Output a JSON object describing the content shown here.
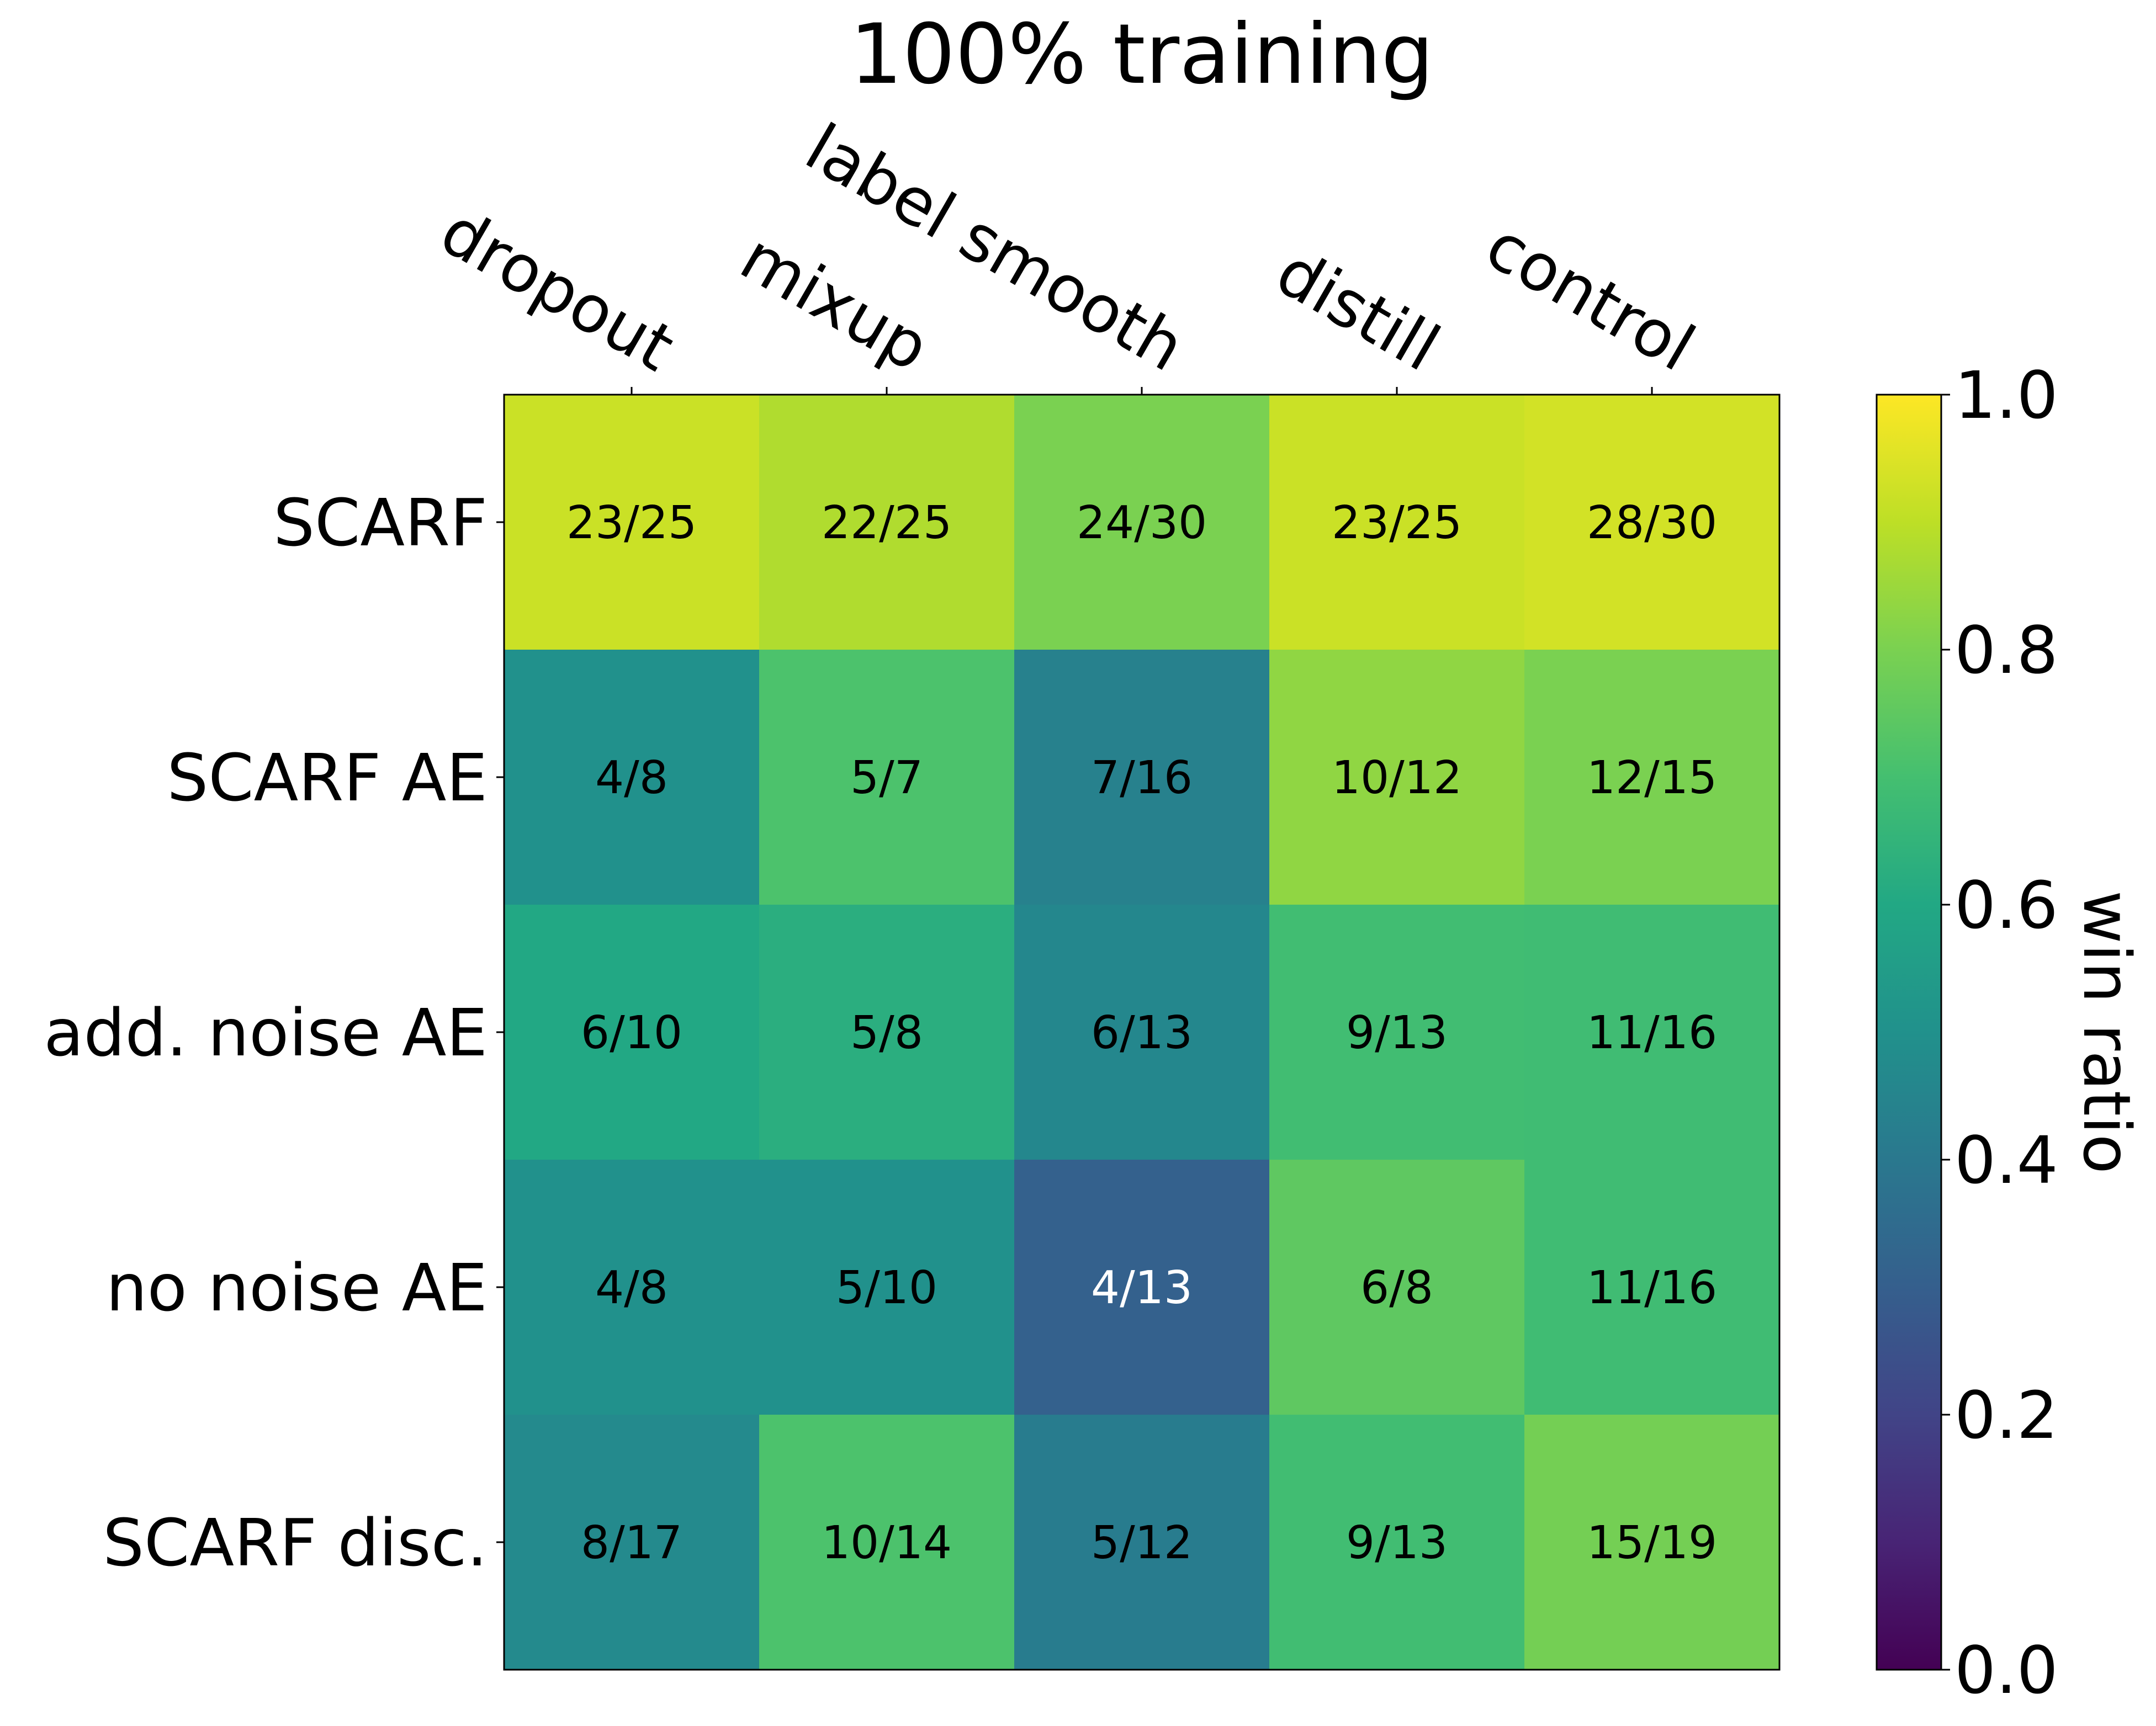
{
  "chart_data": {
    "type": "heatmap",
    "title": "100% training",
    "columns": [
      "dropout",
      "mixup",
      "label smooth",
      "distill",
      "control"
    ],
    "rows": [
      "SCARF",
      "SCARF AE",
      "add. noise AE",
      "no noise AE",
      "SCARF disc."
    ],
    "cells": [
      [
        {
          "label": "23/25",
          "value": 0.92
        },
        {
          "label": "22/25",
          "value": 0.88
        },
        {
          "label": "24/30",
          "value": 0.8
        },
        {
          "label": "23/25",
          "value": 0.92
        },
        {
          "label": "28/30",
          "value": 0.9333
        }
      ],
      [
        {
          "label": "4/8",
          "value": 0.5
        },
        {
          "label": "5/7",
          "value": 0.7143
        },
        {
          "label": "7/16",
          "value": 0.4375
        },
        {
          "label": "10/12",
          "value": 0.8333
        },
        {
          "label": "12/15",
          "value": 0.8
        }
      ],
      [
        {
          "label": "6/10",
          "value": 0.6
        },
        {
          "label": "5/8",
          "value": 0.625
        },
        {
          "label": "6/13",
          "value": 0.4615
        },
        {
          "label": "9/13",
          "value": 0.6923
        },
        {
          "label": "11/16",
          "value": 0.6875
        }
      ],
      [
        {
          "label": "4/8",
          "value": 0.5
        },
        {
          "label": "5/10",
          "value": 0.5
        },
        {
          "label": "4/13",
          "value": 0.3077
        },
        {
          "label": "6/8",
          "value": 0.75
        },
        {
          "label": "11/16",
          "value": 0.6875
        }
      ],
      [
        {
          "label": "8/17",
          "value": 0.4706
        },
        {
          "label": "10/14",
          "value": 0.7143
        },
        {
          "label": "5/12",
          "value": 0.4167
        },
        {
          "label": "9/13",
          "value": 0.6923
        },
        {
          "label": "15/19",
          "value": 0.7895
        }
      ]
    ],
    "colorbar": {
      "label": "win ratio",
      "range": [
        0.0,
        1.0
      ],
      "ticks": [
        "0.0",
        "0.2",
        "0.4",
        "0.6",
        "0.8",
        "1.0"
      ],
      "colormap": "viridis"
    },
    "text_colors": {
      "dark": "#000000",
      "light": "#ffffff"
    }
  }
}
